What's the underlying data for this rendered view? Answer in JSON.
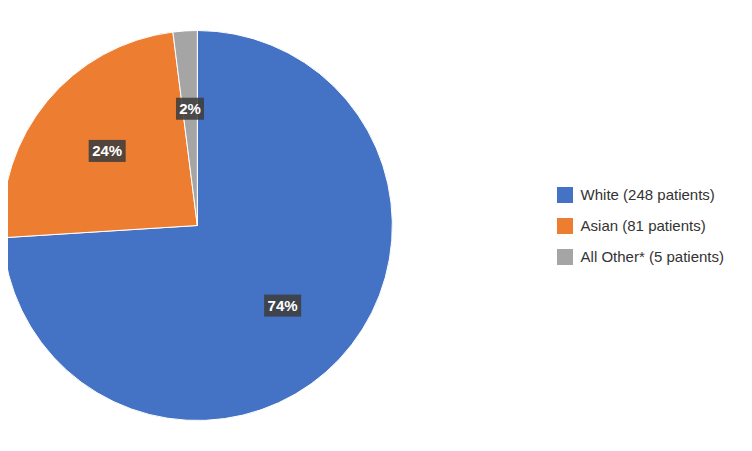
{
  "chart_data": {
    "type": "pie",
    "categories": [
      "White (248 patients)",
      "Asian (81 patients)",
      "All Other* (5 patients)"
    ],
    "values": [
      74,
      24,
      2
    ],
    "value_labels": [
      "74%",
      "24%",
      "2%"
    ],
    "colors": [
      "#4472C4",
      "#ED7D31",
      "#A5A5A5"
    ],
    "data_labels": true,
    "legend": "right"
  }
}
